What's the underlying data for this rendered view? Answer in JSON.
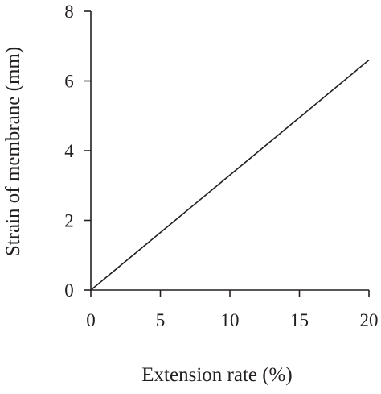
{
  "chart_data": {
    "type": "line",
    "title": "",
    "xlabel": "Extension rate (%)",
    "ylabel": "Strain of membrane (mm)",
    "xlim": [
      0,
      20
    ],
    "ylim": [
      0,
      8
    ],
    "x_ticks": [
      0,
      5,
      10,
      15,
      20
    ],
    "y_ticks": [
      0,
      2,
      4,
      6,
      8
    ],
    "x_tick_labels": [
      "0",
      "5",
      "10",
      "15",
      "20"
    ],
    "y_tick_labels": [
      "0",
      "2",
      "4",
      "6",
      "8"
    ],
    "grid": false,
    "legend": "none",
    "series": [
      {
        "x": [
          0,
          20
        ],
        "y": [
          0,
          6.6
        ]
      }
    ],
    "colors": {
      "line": "#231f20",
      "axis": "#231f20",
      "text": "#231f20"
    }
  }
}
